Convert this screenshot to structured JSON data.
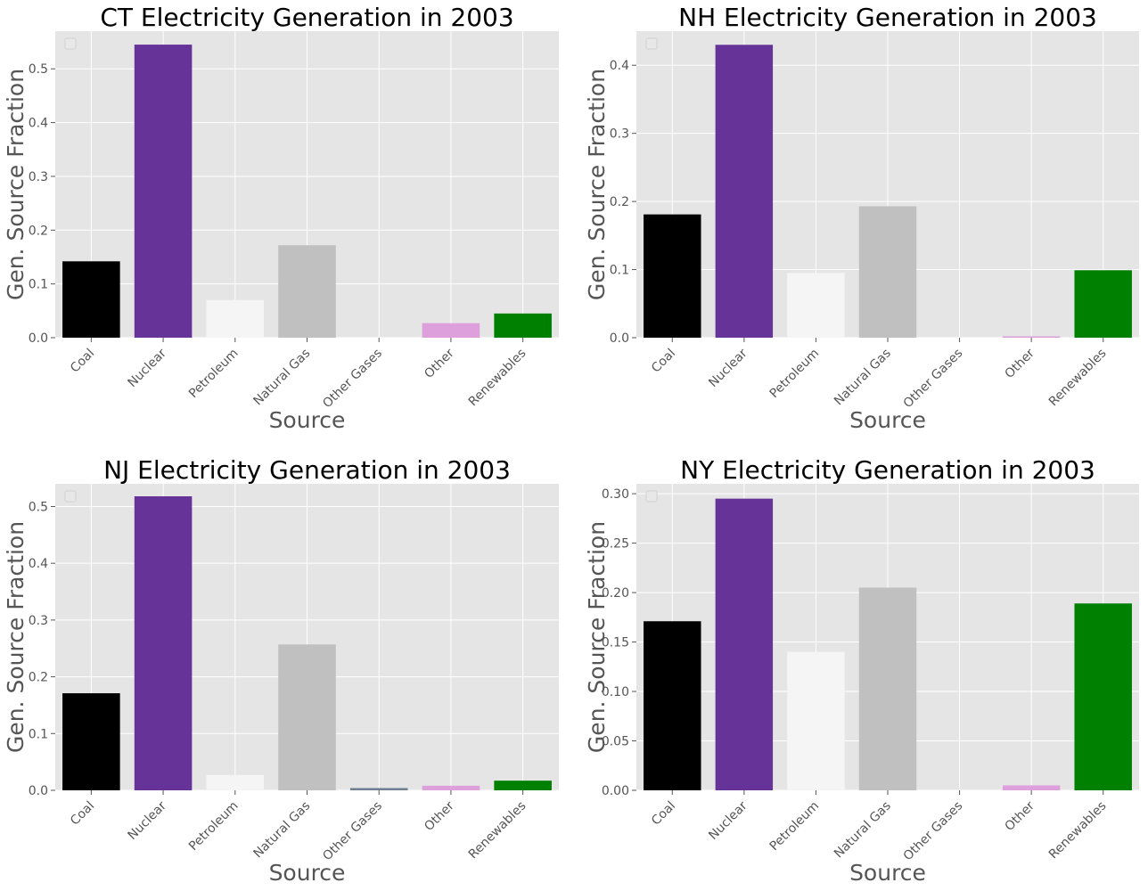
{
  "chart_data": [
    {
      "type": "bar",
      "title": "CT Electricity Generation in 2003",
      "xlabel": "Source",
      "ylabel": "Gen. Source Fraction",
      "categories": [
        "Coal",
        "Nuclear",
        "Petroleum",
        "Natural Gas",
        "Other Gases",
        "Other",
        "Renewables"
      ],
      "values": [
        0.142,
        0.545,
        0.07,
        0.172,
        0.0,
        0.027,
        0.045
      ],
      "ylim": [
        0,
        0.57
      ],
      "yticks": [
        0.0,
        0.1,
        0.2,
        0.3,
        0.4,
        0.5
      ],
      "ytick_labels": [
        "0.0",
        "0.1",
        "0.2",
        "0.3",
        "0.4",
        "0.5"
      ],
      "grid": true,
      "legend": "top-left (empty)"
    },
    {
      "type": "bar",
      "title": "NH Electricity Generation in 2003",
      "xlabel": "Source",
      "ylabel": "Gen. Source Fraction",
      "categories": [
        "Coal",
        "Nuclear",
        "Petroleum",
        "Natural Gas",
        "Other Gases",
        "Other",
        "Renewables"
      ],
      "values": [
        0.181,
        0.43,
        0.095,
        0.193,
        0.0,
        0.002,
        0.099
      ],
      "ylim": [
        0,
        0.45
      ],
      "yticks": [
        0.0,
        0.1,
        0.2,
        0.3,
        0.4
      ],
      "ytick_labels": [
        "0.0",
        "0.1",
        "0.2",
        "0.3",
        "0.4"
      ],
      "grid": true,
      "legend": "top-left (empty)"
    },
    {
      "type": "bar",
      "title": "NJ Electricity Generation in 2003",
      "xlabel": "Source",
      "ylabel": "Gen. Source Fraction",
      "categories": [
        "Coal",
        "Nuclear",
        "Petroleum",
        "Natural Gas",
        "Other Gases",
        "Other",
        "Renewables"
      ],
      "values": [
        0.171,
        0.518,
        0.027,
        0.257,
        0.004,
        0.008,
        0.017
      ],
      "ylim": [
        0,
        0.54
      ],
      "yticks": [
        0.0,
        0.1,
        0.2,
        0.3,
        0.4,
        0.5
      ],
      "ytick_labels": [
        "0.0",
        "0.1",
        "0.2",
        "0.3",
        "0.4",
        "0.5"
      ],
      "grid": true,
      "legend": "top-left (empty)"
    },
    {
      "type": "bar",
      "title": "NY Electricity Generation in 2003",
      "xlabel": "Source",
      "ylabel": "Gen. Source Fraction",
      "categories": [
        "Coal",
        "Nuclear",
        "Petroleum",
        "Natural Gas",
        "Other Gases",
        "Other",
        "Renewables"
      ],
      "values": [
        0.171,
        0.295,
        0.14,
        0.205,
        0.0,
        0.005,
        0.189
      ],
      "ylim": [
        0,
        0.31
      ],
      "yticks": [
        0.0,
        0.05,
        0.1,
        0.15,
        0.2,
        0.25,
        0.3
      ],
      "ytick_labels": [
        "0.00",
        "0.05",
        "0.10",
        "0.15",
        "0.20",
        "0.25",
        "0.30"
      ],
      "grid": true,
      "legend": "top-left (empty)"
    }
  ],
  "colors": {
    "plot_background": "#e5e5e5",
    "grid": "#ffffff",
    "bars": [
      "#000000",
      "#663399",
      "#f5f5f5",
      "#c0c0c0",
      "#708090",
      "#dda0dd",
      "#008000"
    ]
  }
}
